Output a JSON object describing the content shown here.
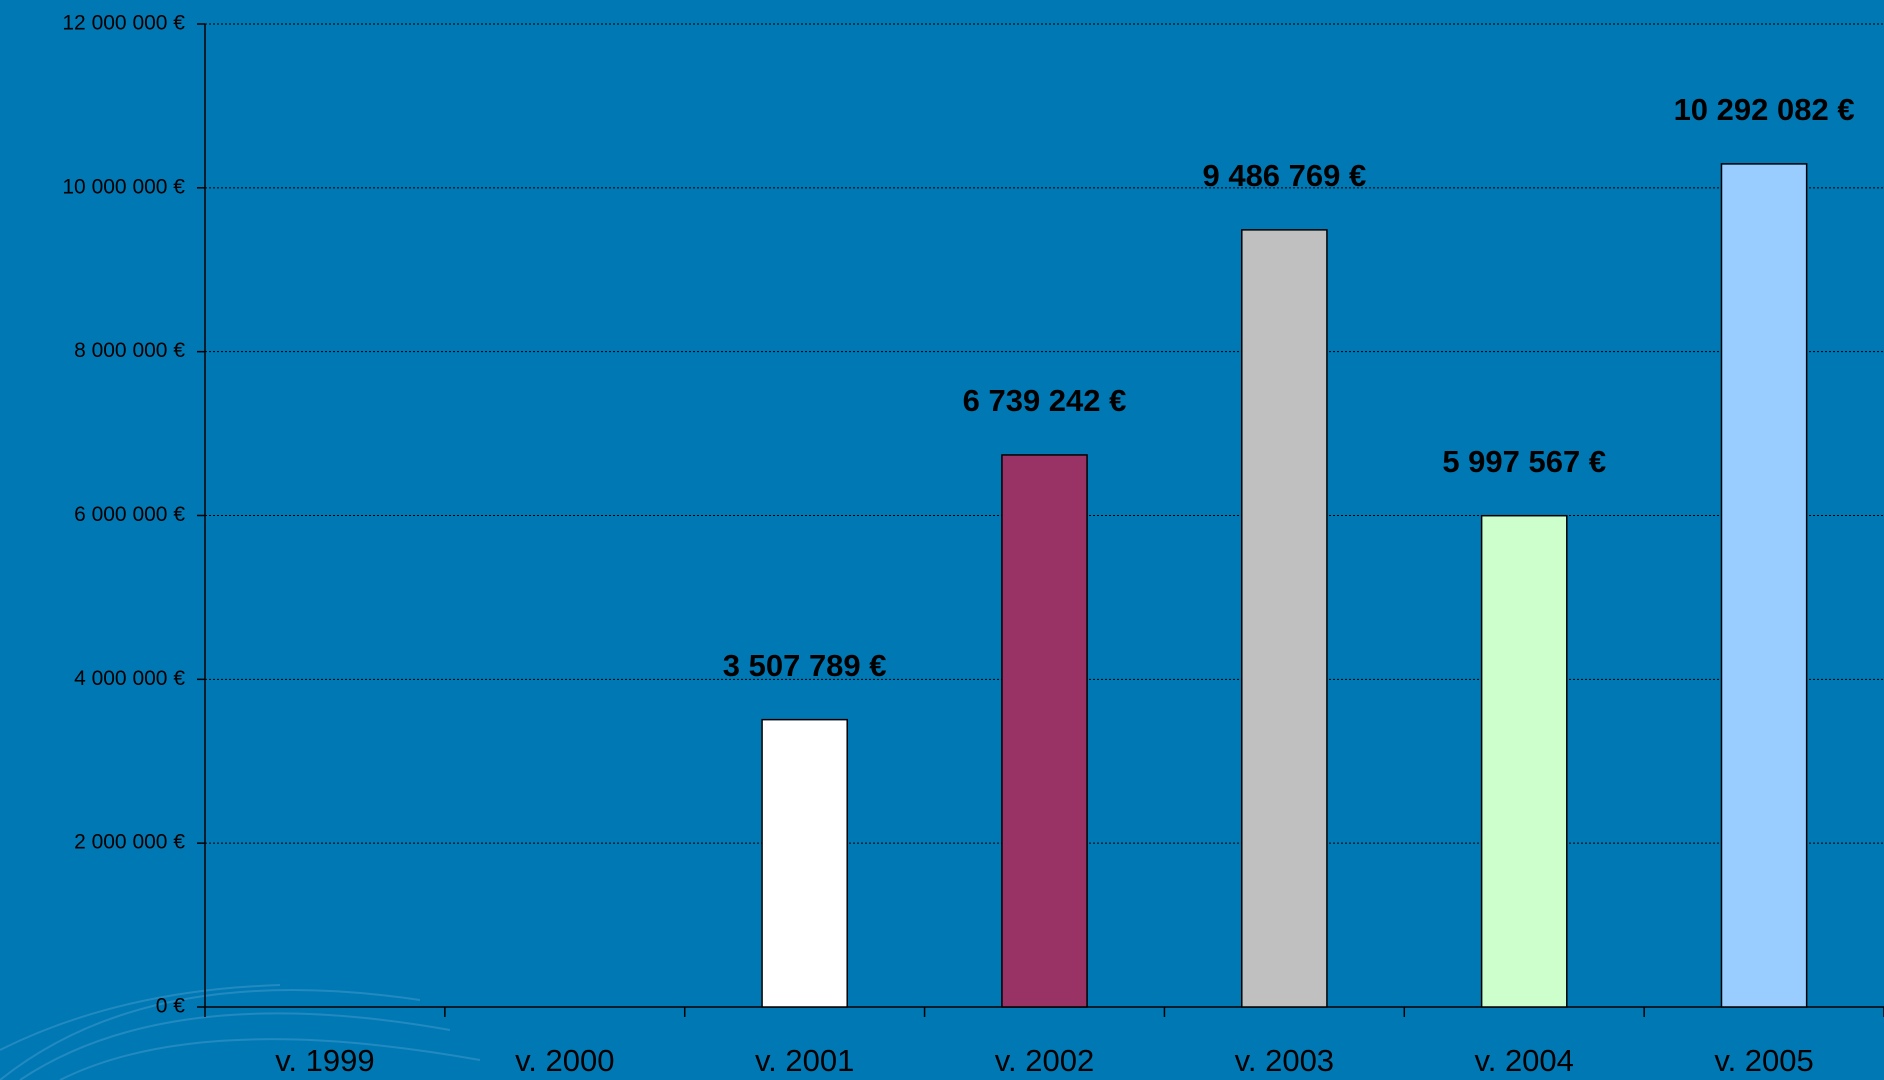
{
  "chart_data": {
    "type": "bar",
    "categories": [
      "v. 1999",
      "v. 2000",
      "v. 2001",
      "v. 2002",
      "v. 2003",
      "v. 2004",
      "v. 2005"
    ],
    "values": [
      null,
      null,
      3507789,
      6739242,
      9486769,
      5997567,
      10292082
    ],
    "value_labels": [
      null,
      null,
      "3 507 789 €",
      "6 739 242 €",
      "9 486 769 €",
      "5 997 567 €",
      "10 292 082 €"
    ],
    "colors": [
      null,
      null,
      "#ffffff",
      "#993366",
      "#c0c0c0",
      "#ccffcc",
      "#99ccff"
    ],
    "ylim": [
      0,
      12000000
    ],
    "yticks": [
      {
        "value": 0,
        "label": "0 €"
      },
      {
        "value": 2000000,
        "label": "2 000 000 €"
      },
      {
        "value": 4000000,
        "label": "4 000 000 €"
      },
      {
        "value": 6000000,
        "label": "6 000 000 €"
      },
      {
        "value": 8000000,
        "label": "8 000 000 €"
      },
      {
        "value": 10000000,
        "label": "10 000 000 €"
      },
      {
        "value": 12000000,
        "label": "12 000 000 €"
      }
    ],
    "grid": true
  }
}
